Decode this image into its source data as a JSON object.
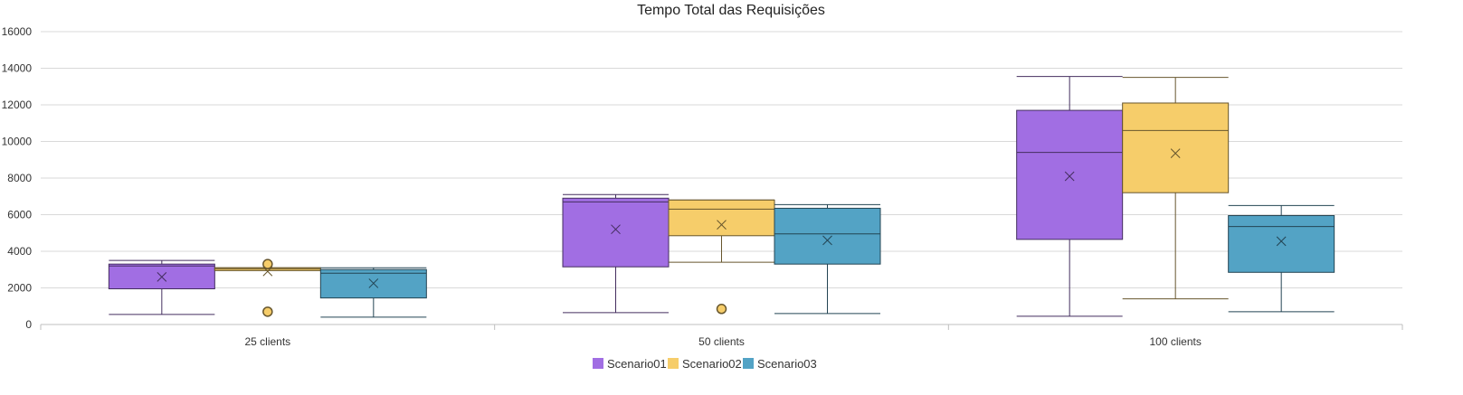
{
  "chart_data": {
    "type": "boxplot",
    "title": "Tempo Total das Requisições",
    "xlabel": "",
    "ylabel": "",
    "ylim": [
      0,
      16000
    ],
    "yticks": [
      0,
      2000,
      4000,
      6000,
      8000,
      10000,
      12000,
      14000,
      16000
    ],
    "categories": [
      "25 clients",
      "50 clients",
      "100 clients"
    ],
    "grid": true,
    "legend_position": "bottom",
    "series": [
      {
        "name": "Scenario01",
        "color": "#a16ee3",
        "boxes": [
          {
            "min": 550,
            "q1": 1950,
            "median": 3200,
            "q3": 3300,
            "max": 3500,
            "mean": 2600,
            "outliers": []
          },
          {
            "min": 650,
            "q1": 3150,
            "median": 6700,
            "q3": 6900,
            "max": 7100,
            "mean": 5200,
            "outliers": []
          },
          {
            "min": 450,
            "q1": 4650,
            "median": 9400,
            "q3": 11700,
            "max": 13550,
            "mean": 8100,
            "outliers": []
          }
        ]
      },
      {
        "name": "Scenario02",
        "color": "#f6cd6a",
        "boxes": [
          {
            "min": 2950,
            "q1": 2950,
            "median": 3050,
            "q3": 3100,
            "max": 3100,
            "mean": 2900,
            "outliers": [
              3300,
              700
            ]
          },
          {
            "min": 3400,
            "q1": 4850,
            "median": 6300,
            "q3": 6800,
            "max": 6800,
            "mean": 5450,
            "outliers": [
              850
            ]
          },
          {
            "min": 1400,
            "q1": 7200,
            "median": 10600,
            "q3": 12100,
            "max": 13500,
            "mean": 9350,
            "outliers": []
          }
        ]
      },
      {
        "name": "Scenario03",
        "color": "#53a3c5",
        "boxes": [
          {
            "min": 400,
            "q1": 1450,
            "median": 2800,
            "q3": 3000,
            "max": 3100,
            "mean": 2250,
            "outliers": []
          },
          {
            "min": 600,
            "q1": 3300,
            "median": 4950,
            "q3": 6350,
            "max": 6550,
            "mean": 4600,
            "outliers": []
          },
          {
            "min": 700,
            "q1": 2850,
            "median": 5350,
            "q3": 5950,
            "max": 6500,
            "mean": 4550,
            "outliers": []
          }
        ]
      }
    ]
  }
}
